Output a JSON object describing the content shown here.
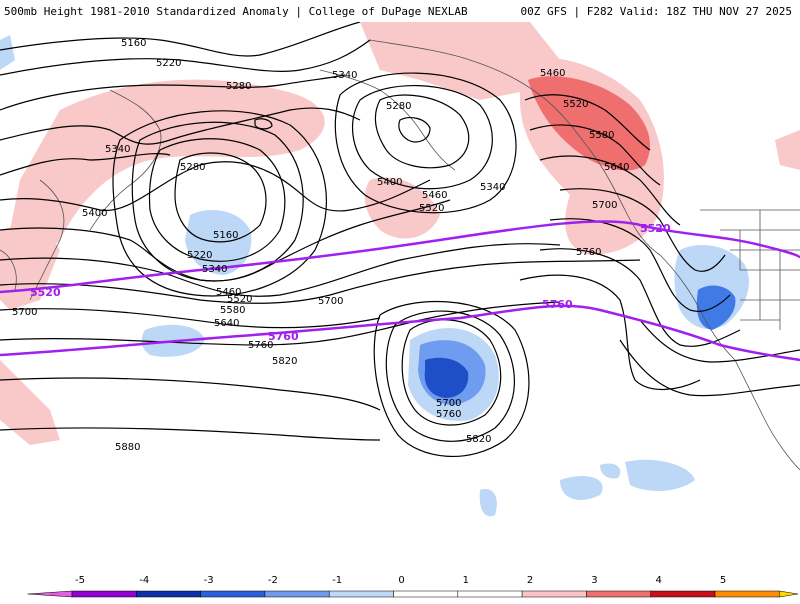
{
  "header": {
    "title": "500mb Height 1981-2010 Standardized Anomaly | College of DuPage NEXLAB",
    "run_info": "00Z GFS | F282 Valid: 18Z THU NOV 27 2025"
  },
  "contour_labels": {
    "h5160a": "5160",
    "h5220a": "5220",
    "h5280a": "5280",
    "h5340a": "5340",
    "h5340b": "5340",
    "h5400a": "5400",
    "h5280b": "5280",
    "h5280c": "5280",
    "h5340c": "5340",
    "h5400b": "5400",
    "h5460a": "5460",
    "h5520a": "5520",
    "h5160b": "5160",
    "h5220b": "5220",
    "h5340d": "5340",
    "h5460b": "5460",
    "h5520b": "5520",
    "h5580a": "5580",
    "h5640a": "5640",
    "h5700a": "5700",
    "h5700b": "5700",
    "h5760a": "5760",
    "h5820a": "5820",
    "h5880a": "5880",
    "h5700c": "5700",
    "h5760b": "5760",
    "h5820b": "5820",
    "h5460c": "5460",
    "h5520c": "5520",
    "h5580b": "5580",
    "h5640b": "5640",
    "h5700d": "5700",
    "h5760c": "5760"
  },
  "purple_labels": {
    "p5520a": "5520",
    "p5520b": "5520",
    "p5760a": "5760",
    "p5760b": "5760"
  },
  "colorbar": {
    "ticks": [
      "-5",
      "-4",
      "-3",
      "-2",
      "-1",
      "0",
      "1",
      "2",
      "3",
      "4",
      "5"
    ],
    "colors": [
      "#9400d3",
      "#0a2fa8",
      "#2b5fe0",
      "#6f9cf0",
      "#bcd8f6",
      "#ffffff",
      "#ffffff",
      "#f8c4c4",
      "#ef7070",
      "#c8101a",
      "#ff8c00",
      "#ffd700"
    ],
    "neg_tip_color": "#e060e0",
    "pos_tip_color": "#ffd700"
  }
}
